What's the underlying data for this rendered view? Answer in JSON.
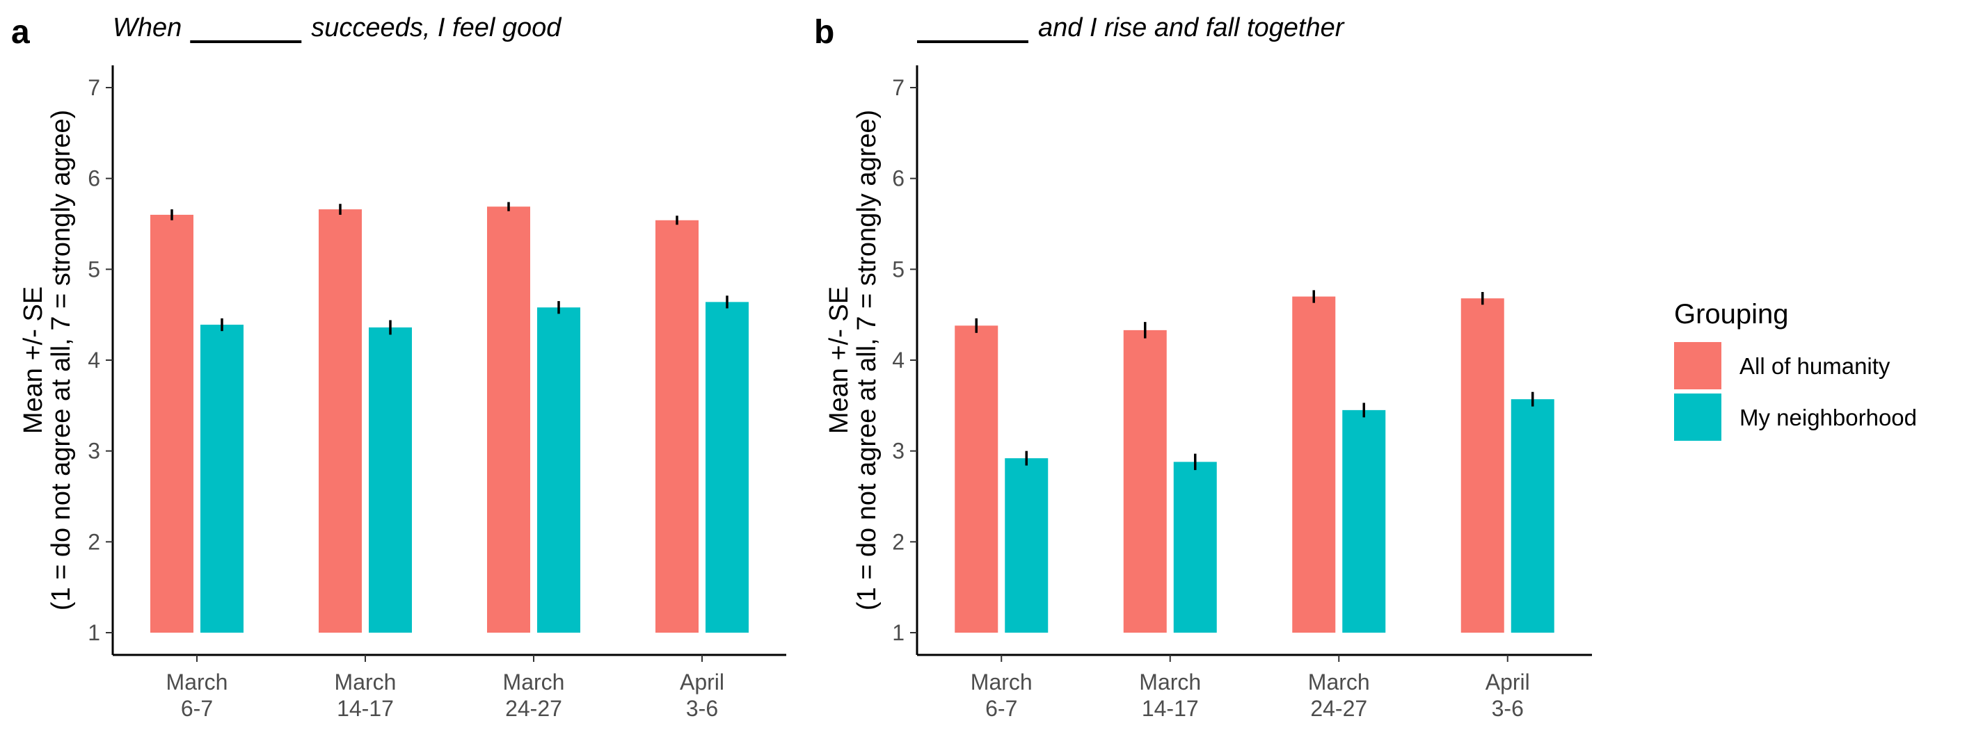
{
  "figure": {
    "legend": {
      "title": "Grouping",
      "entries": [
        {
          "label": "All of humanity",
          "color": "#F8766D"
        },
        {
          "label": "My neighborhood",
          "color": "#00BFC4"
        }
      ]
    }
  },
  "chart_data": [
    {
      "type": "bar",
      "panel_label": "a",
      "title_before": "When",
      "title_after": "succeeds, I feel good",
      "ylabel": [
        "Mean +/- SE",
        "(1 = do not agree at all, 7 = strongly agree)"
      ],
      "xlabel": "",
      "ylim": [
        1,
        7
      ],
      "yticks": [
        1,
        2,
        3,
        4,
        5,
        6,
        7
      ],
      "categories": [
        [
          "March",
          "6-7"
        ],
        [
          "March",
          "14-17"
        ],
        [
          "March",
          "24-27"
        ],
        [
          "April",
          "3-6"
        ]
      ],
      "series": [
        {
          "name": "All of humanity",
          "color": "#F8766D",
          "values": [
            5.6,
            5.66,
            5.69,
            5.54
          ],
          "se": [
            0.06,
            0.06,
            0.05,
            0.05
          ]
        },
        {
          "name": "My neighborhood",
          "color": "#00BFC4",
          "values": [
            4.39,
            4.36,
            4.58,
            4.64
          ],
          "se": [
            0.07,
            0.08,
            0.07,
            0.07
          ]
        }
      ],
      "grid": false
    },
    {
      "type": "bar",
      "panel_label": "b",
      "title_before": "",
      "title_after": "and I rise and fall together",
      "ylabel": [
        "Mean +/- SE",
        "(1 = do not agree at all, 7 = strongly agree)"
      ],
      "xlabel": "",
      "ylim": [
        1,
        7
      ],
      "yticks": [
        1,
        2,
        3,
        4,
        5,
        6,
        7
      ],
      "categories": [
        [
          "March",
          "6-7"
        ],
        [
          "March",
          "14-17"
        ],
        [
          "March",
          "24-27"
        ],
        [
          "April",
          "3-6"
        ]
      ],
      "series": [
        {
          "name": "All of humanity",
          "color": "#F8766D",
          "values": [
            4.38,
            4.33,
            4.7,
            4.68
          ],
          "se": [
            0.08,
            0.09,
            0.07,
            0.07
          ]
        },
        {
          "name": "My neighborhood",
          "color": "#00BFC4",
          "values": [
            2.92,
            2.88,
            3.45,
            3.57
          ],
          "se": [
            0.08,
            0.09,
            0.08,
            0.08
          ]
        }
      ],
      "grid": false
    }
  ]
}
